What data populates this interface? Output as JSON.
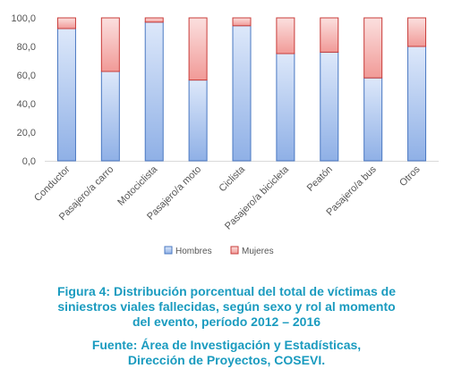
{
  "chart_data": {
    "type": "bar",
    "stacked": true,
    "categories": [
      "Conductor",
      "Pasajero/a carro",
      "Motociclista",
      "Pasajero/a moto",
      "Ciclista",
      "Pasajero/a bicicleta",
      "Peatón",
      "Pasajero/a bus",
      "Otros"
    ],
    "series": [
      {
        "name": "Hombres",
        "values": [
          92.5,
          62.5,
          97.0,
          56.5,
          94.5,
          75.0,
          76.0,
          58.0,
          80.0
        ],
        "color": "#aec6f0"
      },
      {
        "name": "Mujeres",
        "values": [
          7.5,
          37.5,
          3.0,
          43.5,
          5.5,
          25.0,
          24.0,
          42.0,
          20.0
        ],
        "color": "#f4a6a3"
      }
    ],
    "yticks": [
      "0,0",
      "20,0",
      "40,0",
      "60,0",
      "80,0",
      "100,0"
    ],
    "ylim": [
      0,
      100
    ],
    "legend_position": "bottom",
    "grid": false
  },
  "caption": {
    "lines": [
      "Figura 4: Distribución porcentual del total de víctimas de",
      "siniestros viales fallecidas, según sexo y rol al momento",
      "del evento, período 2012 – 2016"
    ]
  },
  "source": {
    "lines": [
      "Fuente: Área de Investigación y Estadísticas,",
      "Dirección de Proyectos, COSEVI."
    ]
  }
}
